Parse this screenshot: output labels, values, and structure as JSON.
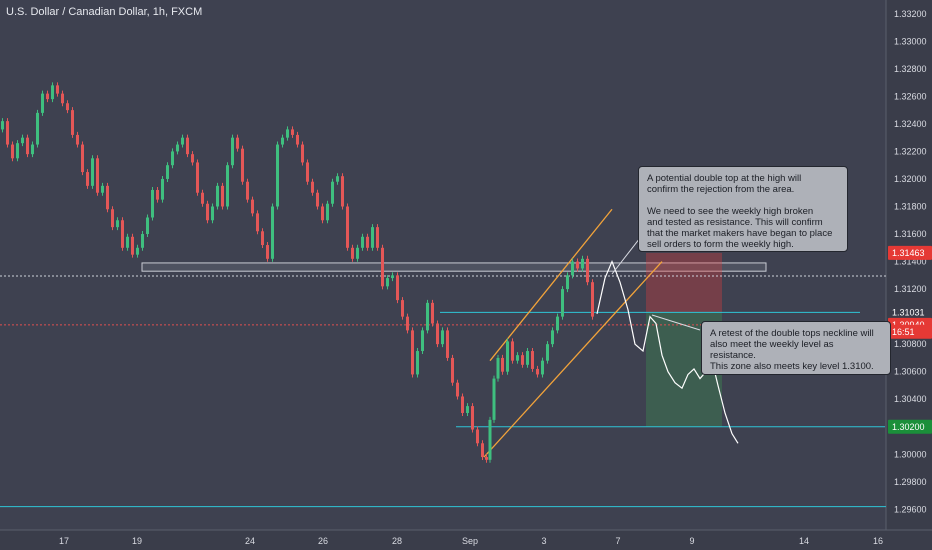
{
  "header": {
    "title": "U.S. Dollar / Canadian Dollar, 1h, FXCM"
  },
  "chart_data": {
    "type": "line",
    "symbol": "USDCAD",
    "timeframe": "1h",
    "ylim": [
      1.2945,
      1.333
    ],
    "x_tick_labels": [
      "17",
      "19",
      "24",
      "26",
      "28",
      "Sep",
      "3",
      "7",
      "9",
      "14",
      "16"
    ],
    "y_tick_labels": [
      "1.33200",
      "1.33000",
      "1.32800",
      "1.32600",
      "1.32400",
      "1.32200",
      "1.32000",
      "1.31800",
      "1.31600",
      "1.31400",
      "1.31200",
      "1.31000",
      "1.30800",
      "1.30600",
      "1.30400",
      "1.30200",
      "1.30000",
      "1.29800",
      "1.29600"
    ],
    "price_badges": [
      {
        "label": "1.31463",
        "value": 1.31463,
        "color": "#e53935"
      },
      {
        "label": "1.31031",
        "value": 1.31031,
        "color": "#3a3d4a"
      },
      {
        "label": "1.30940",
        "value": 1.3094,
        "color": "#e53935"
      },
      {
        "label": "16:51",
        "value": 1.3089,
        "color": "#e53935"
      },
      {
        "label": "1.30200",
        "value": 1.302,
        "color": "#1b8f3a"
      }
    ],
    "price_path": [
      [
        0,
        1.3236
      ],
      [
        5,
        1.3242
      ],
      [
        10,
        1.3225
      ],
      [
        15,
        1.3215
      ],
      [
        20,
        1.3226
      ],
      [
        25,
        1.323
      ],
      [
        30,
        1.3218
      ],
      [
        35,
        1.3225
      ],
      [
        40,
        1.3248
      ],
      [
        45,
        1.3262
      ],
      [
        50,
        1.3258
      ],
      [
        55,
        1.3268
      ],
      [
        60,
        1.3262
      ],
      [
        65,
        1.3255
      ],
      [
        70,
        1.325
      ],
      [
        75,
        1.3232
      ],
      [
        80,
        1.3225
      ],
      [
        85,
        1.3205
      ],
      [
        90,
        1.3195
      ],
      [
        95,
        1.3215
      ],
      [
        100,
        1.319
      ],
      [
        105,
        1.3195
      ],
      [
        110,
        1.3178
      ],
      [
        115,
        1.3165
      ],
      [
        120,
        1.317
      ],
      [
        125,
        1.315
      ],
      [
        130,
        1.3158
      ],
      [
        135,
        1.3145
      ],
      [
        140,
        1.315
      ],
      [
        145,
        1.316
      ],
      [
        150,
        1.3172
      ],
      [
        155,
        1.3192
      ],
      [
        160,
        1.3185
      ],
      [
        165,
        1.32
      ],
      [
        170,
        1.321
      ],
      [
        175,
        1.322
      ],
      [
        180,
        1.3225
      ],
      [
        185,
        1.323
      ],
      [
        190,
        1.3218
      ],
      [
        195,
        1.3212
      ],
      [
        200,
        1.319
      ],
      [
        205,
        1.3182
      ],
      [
        210,
        1.317
      ],
      [
        215,
        1.318
      ],
      [
        220,
        1.3195
      ],
      [
        225,
        1.318
      ],
      [
        230,
        1.321
      ],
      [
        235,
        1.323
      ],
      [
        240,
        1.3222
      ],
      [
        245,
        1.3198
      ],
      [
        250,
        1.3185
      ],
      [
        255,
        1.3175
      ],
      [
        260,
        1.3162
      ],
      [
        265,
        1.3152
      ],
      [
        270,
        1.3142
      ],
      [
        275,
        1.318
      ],
      [
        280,
        1.3225
      ],
      [
        285,
        1.323
      ],
      [
        290,
        1.3236
      ],
      [
        295,
        1.3232
      ],
      [
        300,
        1.3225
      ],
      [
        305,
        1.3212
      ],
      [
        310,
        1.3198
      ],
      [
        315,
        1.319
      ],
      [
        320,
        1.318
      ],
      [
        325,
        1.317
      ],
      [
        330,
        1.3182
      ],
      [
        335,
        1.3198
      ],
      [
        340,
        1.3202
      ],
      [
        345,
        1.318
      ],
      [
        350,
        1.315
      ],
      [
        355,
        1.3142
      ],
      [
        360,
        1.315
      ],
      [
        365,
        1.3158
      ],
      [
        370,
        1.315
      ],
      [
        375,
        1.3165
      ],
      [
        380,
        1.315
      ],
      [
        385,
        1.3122
      ],
      [
        390,
        1.3128
      ],
      [
        395,
        1.313
      ],
      [
        400,
        1.3112
      ],
      [
        405,
        1.31
      ],
      [
        410,
        1.309
      ],
      [
        415,
        1.3058
      ],
      [
        420,
        1.3075
      ],
      [
        425,
        1.309
      ],
      [
        430,
        1.311
      ],
      [
        435,
        1.3095
      ],
      [
        440,
        1.308
      ],
      [
        445,
        1.309
      ],
      [
        450,
        1.307
      ],
      [
        455,
        1.3052
      ],
      [
        460,
        1.3042
      ],
      [
        465,
        1.303
      ],
      [
        470,
        1.3035
      ],
      [
        475,
        1.3018
      ],
      [
        480,
        1.3008
      ],
      [
        485,
        1.2998
      ],
      [
        488,
        1.2996
      ],
      [
        492,
        1.3025
      ],
      [
        496,
        1.3055
      ],
      [
        500,
        1.307
      ],
      [
        505,
        1.306
      ],
      [
        510,
        1.3082
      ],
      [
        515,
        1.3068
      ],
      [
        520,
        1.3072
      ],
      [
        525,
        1.3065
      ],
      [
        530,
        1.3075
      ],
      [
        535,
        1.3062
      ],
      [
        540,
        1.3058
      ],
      [
        545,
        1.3068
      ],
      [
        550,
        1.308
      ],
      [
        555,
        1.309
      ],
      [
        560,
        1.31
      ],
      [
        565,
        1.312
      ],
      [
        570,
        1.313
      ],
      [
        575,
        1.314
      ],
      [
        580,
        1.3135
      ],
      [
        585,
        1.3142
      ],
      [
        590,
        1.3125
      ],
      [
        595,
        1.31
      ]
    ],
    "projection_path": [
      [
        597,
        1.3102
      ],
      [
        605,
        1.3128
      ],
      [
        612,
        1.314
      ],
      [
        620,
        1.3125
      ],
      [
        628,
        1.3105
      ],
      [
        635,
        1.308
      ],
      [
        643,
        1.3075
      ],
      [
        650,
        1.31
      ],
      [
        656,
        1.3095
      ],
      [
        662,
        1.3072
      ],
      [
        668,
        1.306
      ],
      [
        675,
        1.3052
      ],
      [
        682,
        1.3048
      ],
      [
        688,
        1.3058
      ],
      [
        694,
        1.3062
      ],
      [
        700,
        1.3055
      ],
      [
        706,
        1.306
      ],
      [
        712,
        1.3068
      ],
      [
        718,
        1.305
      ],
      [
        725,
        1.303
      ],
      [
        732,
        1.3015
      ],
      [
        738,
        1.3008
      ]
    ],
    "zones": [
      {
        "name": "weekly-resistance-zone",
        "x1": 142,
        "x2": 766,
        "y1": 1.3139,
        "y2": 1.3133
      },
      {
        "name": "risk-zone",
        "x1": 646,
        "x2": 722,
        "y1": 1.31463,
        "y2": 1.31031
      },
      {
        "name": "reward-zone",
        "x1": 646,
        "x2": 722,
        "y1": 1.31031,
        "y2": 1.302
      }
    ],
    "hlines": [
      {
        "name": "dotted-level",
        "y": 1.31295,
        "color": "#cfd2da",
        "dash": "2,2"
      },
      {
        "name": "entry-level",
        "y": 1.31031,
        "color": "#2ec4d6",
        "x1": 440,
        "x2": 860
      },
      {
        "name": "red-dotted-level",
        "y": 1.3094,
        "color": "#e05050",
        "dash": "2,2"
      },
      {
        "name": "target-level",
        "y": 1.302,
        "color": "#2ec4d6",
        "x1": 456,
        "x2": 885
      },
      {
        "name": "bottom-level",
        "y": 1.2962,
        "color": "#2ec4d6"
      }
    ],
    "channel": {
      "upper": [
        [
          490,
          1.3068
        ],
        [
          612,
          1.3178
        ]
      ],
      "lower": [
        [
          484,
          1.2998
        ],
        [
          662,
          1.314
        ]
      ]
    },
    "annotations": [
      "A potential double top at the high will\nconfirm the rejection from the area.\n\nWe need to see the weekly high broken\n and tested as resistance. This will confirm\nthat the market makers have began to place\nsell orders to form the weekly high.",
      "A retest of the double tops neckline will\nalso meet the weekly level as resistance.\nThis zone also meets key level 1.3100."
    ],
    "legend": "none",
    "grid": false
  }
}
